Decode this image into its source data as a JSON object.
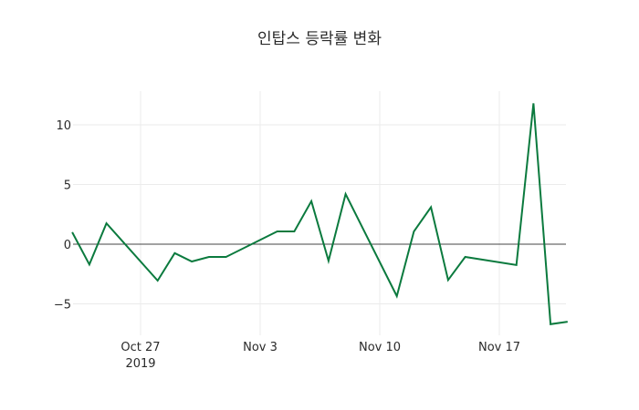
{
  "title": "인탑스 등락률 변화",
  "colors": {
    "line": "#0b7a3e",
    "grid": "#ebebeb",
    "zeroline": "#444444"
  },
  "chart_data": {
    "type": "line",
    "title": "인탑스 등락률 변화",
    "xlabel": "",
    "ylabel": "",
    "ylim": [
      -7.8,
      12.9
    ],
    "grid": true,
    "legend": false,
    "x_ticks": [
      {
        "label": "Oct 27",
        "sub": "2019",
        "date": "2019-10-27"
      },
      {
        "label": "Nov 3",
        "date": "2019-11-03"
      },
      {
        "label": "Nov 10",
        "date": "2019-11-10"
      },
      {
        "label": "Nov 17",
        "date": "2019-11-17"
      }
    ],
    "y_ticks": [
      -5,
      0,
      5,
      10
    ],
    "y_tick_labels": [
      "−5",
      "0",
      "5",
      "10"
    ],
    "series": [
      {
        "name": "등락률",
        "x": [
          "2019-10-23",
          "2019-10-24",
          "2019-10-25",
          "2019-10-28",
          "2019-10-29",
          "2019-10-30",
          "2019-10-31",
          "2019-11-01",
          "2019-11-04",
          "2019-11-05",
          "2019-11-06",
          "2019-11-07",
          "2019-11-08",
          "2019-11-11",
          "2019-11-12",
          "2019-11-13",
          "2019-11-14",
          "2019-11-15",
          "2019-11-18",
          "2019-11-19",
          "2019-11-20",
          "2019-11-21"
        ],
        "values": [
          1.0,
          -1.7,
          1.75,
          -3.05,
          -0.75,
          -1.45,
          -1.07,
          -1.07,
          1.07,
          1.07,
          3.6,
          -1.4,
          4.2,
          -4.35,
          1.07,
          3.1,
          -3.0,
          -1.07,
          -1.75,
          11.8,
          -6.7,
          -6.5
        ]
      }
    ]
  }
}
